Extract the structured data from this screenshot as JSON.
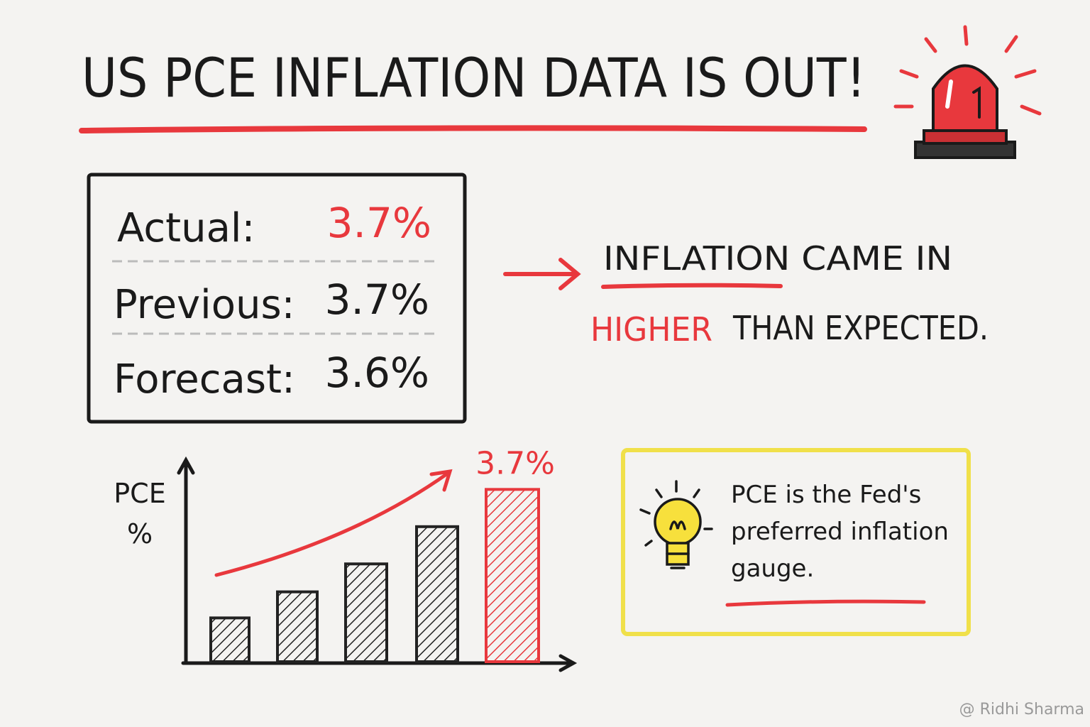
{
  "header": {
    "title": "US PCE INFLATION DATA IS OUT!"
  },
  "table": {
    "rows": [
      [
        "Actual:",
        "3.7%"
      ],
      [
        "Previous:",
        "3.7%"
      ],
      [
        "Forecast:",
        "3.6%"
      ]
    ]
  },
  "callout": {
    "line1": "INFLATION CAME IN",
    "highlight": "HIGHER",
    "rest": "THAN EXPECTED."
  },
  "chart_data": {
    "type": "bar",
    "ylabel_lines": [
      "PCE",
      "%"
    ],
    "values": [
      0.94,
      1.5,
      2.1,
      2.9,
      3.7
    ],
    "value_labels": [
      null,
      null,
      null,
      null,
      "3.7%"
    ],
    "colors": [
      "#222222",
      "#222222",
      "#222222",
      "#222222",
      "#e8383d"
    ],
    "ylim": [
      0,
      4.3
    ]
  },
  "note": {
    "lines": [
      "PCE is the Fed's",
      "preferred inflation",
      "gauge."
    ]
  },
  "watermark": "@ Ridhi Sharma"
}
